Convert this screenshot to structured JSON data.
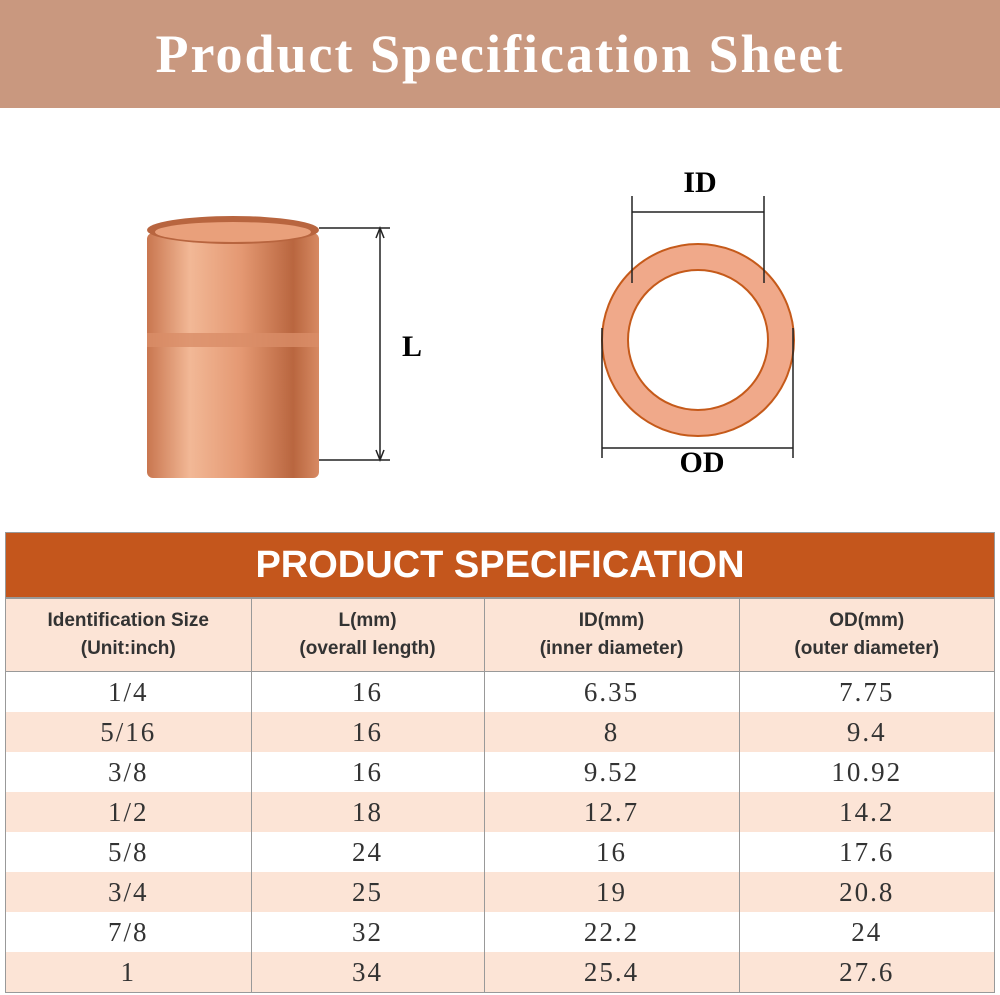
{
  "header": {
    "title": "Product Specification Sheet"
  },
  "diagram": {
    "length_label": "L",
    "id_label": "ID",
    "od_label": "OD"
  },
  "table": {
    "title": "PRODUCT SPECIFICATION",
    "columns": [
      [
        "Identification Size",
        "(Unit:inch)"
      ],
      [
        "L(mm)",
        "(overall length)"
      ],
      [
        "ID(mm)",
        "(inner diameter)"
      ],
      [
        "OD(mm)",
        "(outer diameter)"
      ]
    ],
    "rows": [
      [
        "1/4",
        "16",
        "6.35",
        "7.75"
      ],
      [
        "5/16",
        "16",
        "8",
        "9.4"
      ],
      [
        "3/8",
        "16",
        "9.52",
        "10.92"
      ],
      [
        "1/2",
        "18",
        "12.7",
        "14.2"
      ],
      [
        "5/8",
        "24",
        "16",
        "17.6"
      ],
      [
        "3/4",
        "25",
        "19",
        "20.8"
      ],
      [
        "7/8",
        "32",
        "22.2",
        "24"
      ],
      [
        "1",
        "34",
        "25.4",
        "27.6"
      ]
    ]
  }
}
